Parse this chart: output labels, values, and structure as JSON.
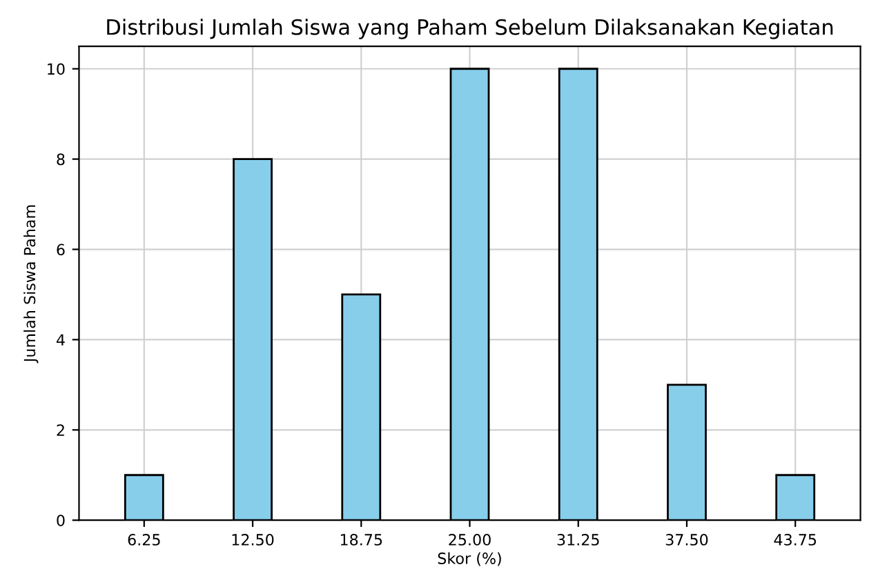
{
  "chart_data": {
    "type": "bar",
    "title": "Distribusi Jumlah Siswa yang Paham Sebelum Dilaksanakan Kegiatan",
    "xlabel": "Skor (%)",
    "ylabel": "Jumlah Siswa Paham",
    "categories": [
      "6.25",
      "12.50",
      "18.75",
      "25.00",
      "31.25",
      "37.50",
      "43.75"
    ],
    "values": [
      1,
      8,
      5,
      10,
      10,
      3,
      1
    ],
    "color": "#87ceeb",
    "ylim": [
      0,
      10.5
    ],
    "yticks": [
      0,
      2,
      4,
      6,
      8,
      10
    ],
    "grid": true
  }
}
